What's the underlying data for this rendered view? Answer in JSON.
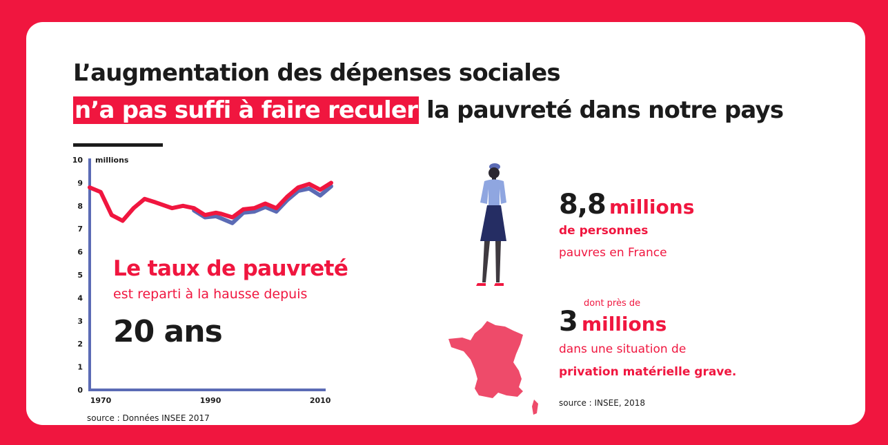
{
  "headline": {
    "line1": "L’augmentation des dépenses sociales",
    "line2_highlight": "n’a pas suffi à faire reculer",
    "line2_rest": " la pauvreté dans notre pays"
  },
  "chart_data": {
    "type": "line",
    "ylabel": "millions",
    "ylim": [
      0,
      10
    ],
    "yticks": [
      0,
      1,
      2,
      3,
      4,
      5,
      6,
      7,
      8,
      9,
      10
    ],
    "xlim": [
      1970,
      2013
    ],
    "xticks": [
      1970,
      1990,
      2010
    ],
    "series": [
      {
        "color": "#f0163f",
        "x": [
          1970,
          1972,
          1974,
          1976,
          1978,
          1980,
          1982,
          1985,
          1987,
          1989,
          1991,
          1993,
          1994,
          1996,
          1998,
          2000,
          2002,
          2004,
          2006,
          2008,
          2010,
          2012,
          2014
        ],
        "y": [
          8.8,
          8.6,
          7.6,
          7.35,
          7.9,
          8.3,
          8.15,
          7.9,
          8.0,
          7.9,
          7.6,
          7.7,
          7.65,
          7.5,
          7.85,
          7.9,
          8.1,
          7.9,
          8.4,
          8.8,
          8.95,
          8.7,
          9.0
        ]
      },
      {
        "color": "#5b6bb5",
        "x": [
          1989,
          1991,
          1993,
          1994,
          1996,
          1998,
          2000,
          2002,
          2004,
          2006,
          2008,
          2010,
          2012,
          2014
        ],
        "y": [
          7.8,
          7.5,
          7.55,
          7.45,
          7.25,
          7.7,
          7.75,
          7.95,
          7.75,
          8.25,
          8.65,
          8.75,
          8.45,
          8.85
        ]
      }
    ]
  },
  "chart_overlay": {
    "headline": "Le taux de pauvreté",
    "subline": "est reparti à la hausse depuis",
    "big": "20 ans"
  },
  "source_left": "source : Données INSEE 2017",
  "stat1": {
    "number": "8,8",
    "unit": "millions",
    "line2": "de personnes",
    "line3": "pauvres en France"
  },
  "stat2": {
    "prefix": "dont près de",
    "number": "3",
    "unit": "millions",
    "line2": "dans une situation de",
    "line3": "privation matérielle grave."
  },
  "source_right": "source : INSEE, 2018",
  "colors": {
    "background": "#f0163f",
    "card": "#ffffff",
    "accent": "#f0163f",
    "axis": "#5b6bb5",
    "text": "#1b1b1b",
    "map": "#ee4b6a"
  }
}
